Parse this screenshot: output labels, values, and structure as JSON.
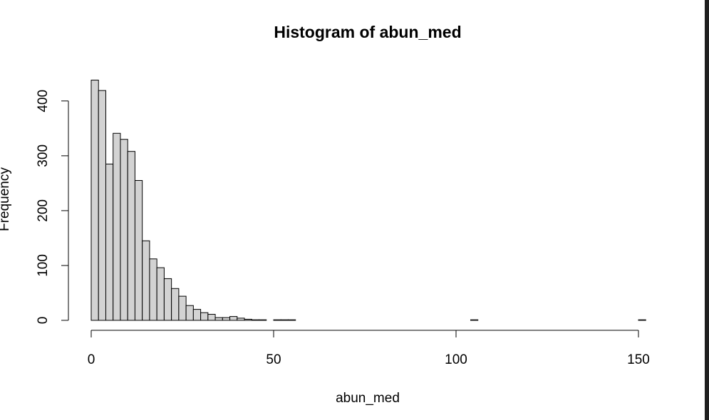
{
  "chart_data": {
    "type": "bar",
    "title": "Histogram of abun_med",
    "xlabel": "abun_med",
    "ylabel": "Frequency",
    "xlim": [
      0,
      152
    ],
    "ylim": [
      0,
      440
    ],
    "bin_width": 2,
    "x_ticks": [
      0,
      50,
      100,
      150
    ],
    "x_tick_labels": [
      "0",
      "50",
      "100",
      "150"
    ],
    "y_ticks": [
      0,
      100,
      200,
      300,
      400
    ],
    "y_tick_labels": [
      "0",
      "100",
      "200",
      "300",
      "400"
    ],
    "bins": [
      {
        "x0": 0,
        "x1": 2,
        "value": 438
      },
      {
        "x0": 2,
        "x1": 4,
        "value": 419
      },
      {
        "x0": 4,
        "x1": 6,
        "value": 285
      },
      {
        "x0": 6,
        "x1": 8,
        "value": 341
      },
      {
        "x0": 8,
        "x1": 10,
        "value": 330
      },
      {
        "x0": 10,
        "x1": 12,
        "value": 308
      },
      {
        "x0": 12,
        "x1": 14,
        "value": 255
      },
      {
        "x0": 14,
        "x1": 16,
        "value": 145
      },
      {
        "x0": 16,
        "x1": 18,
        "value": 112
      },
      {
        "x0": 18,
        "x1": 20,
        "value": 96
      },
      {
        "x0": 20,
        "x1": 22,
        "value": 76
      },
      {
        "x0": 22,
        "x1": 24,
        "value": 58
      },
      {
        "x0": 24,
        "x1": 26,
        "value": 44
      },
      {
        "x0": 26,
        "x1": 28,
        "value": 27
      },
      {
        "x0": 28,
        "x1": 30,
        "value": 20
      },
      {
        "x0": 30,
        "x1": 32,
        "value": 14
      },
      {
        "x0": 32,
        "x1": 34,
        "value": 11
      },
      {
        "x0": 34,
        "x1": 36,
        "value": 5
      },
      {
        "x0": 36,
        "x1": 38,
        "value": 5
      },
      {
        "x0": 38,
        "x1": 40,
        "value": 7
      },
      {
        "x0": 40,
        "x1": 42,
        "value": 4
      },
      {
        "x0": 42,
        "x1": 44,
        "value": 2
      },
      {
        "x0": 44,
        "x1": 46,
        "value": 1
      },
      {
        "x0": 46,
        "x1": 48,
        "value": 1
      },
      {
        "x0": 48,
        "x1": 50,
        "value": 0
      },
      {
        "x0": 50,
        "x1": 52,
        "value": 1
      },
      {
        "x0": 52,
        "x1": 54,
        "value": 1
      },
      {
        "x0": 54,
        "x1": 56,
        "value": 1
      },
      {
        "x0": 104,
        "x1": 106,
        "value": 1
      },
      {
        "x0": 150,
        "x1": 152,
        "value": 1
      }
    ],
    "bar_fill": "#d3d3d3",
    "bar_stroke": "#000000",
    "grid": false,
    "legend": "none"
  }
}
